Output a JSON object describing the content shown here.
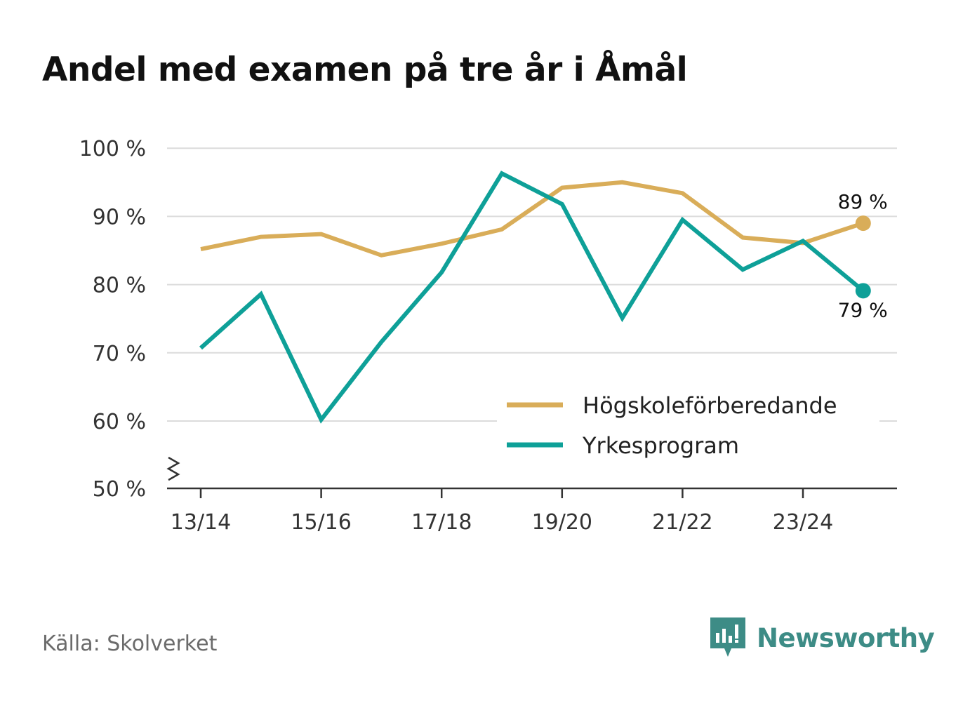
{
  "title": "Andel med examen på tre år i Åmål",
  "source": "Källa: Skolverket",
  "brand": {
    "name": "Newsworthy",
    "icon": "newsworthy-logo-icon",
    "color": "#3d8c86"
  },
  "chart_data": {
    "type": "line",
    "title": "Andel med examen på tre år i Åmål",
    "xlabel": "",
    "ylabel": "",
    "x": [
      "13/14",
      "14/15",
      "15/16",
      "16/17",
      "17/18",
      "18/19",
      "19/20",
      "20/21",
      "21/22",
      "22/23",
      "23/24",
      "24/25"
    ],
    "x_tick_labels": [
      "13/14",
      "15/16",
      "17/18",
      "19/20",
      "21/22",
      "23/24"
    ],
    "ylim": [
      50,
      100
    ],
    "y_ticks": [
      50,
      60,
      70,
      80,
      90,
      100
    ],
    "y_tick_labels": [
      "50 %",
      "60 %",
      "70 %",
      "80 %",
      "90 %",
      "100 %"
    ],
    "axis_break": true,
    "grid": true,
    "legend_position": "bottom-right",
    "series": [
      {
        "name": "Högskoleförberedande",
        "color": "#d9ad59",
        "values": [
          85.2,
          87.0,
          87.4,
          84.3,
          86.0,
          88.1,
          94.2,
          95.0,
          93.4,
          86.9,
          86.1,
          89.0
        ],
        "end_label": "89 %"
      },
      {
        "name": "Yrkesprogram",
        "color": "#0ea098",
        "values": [
          70.7,
          78.6,
          60.2,
          71.6,
          81.8,
          96.3,
          91.8,
          75.1,
          89.5,
          82.2,
          86.4,
          79.1
        ],
        "end_label": "79 %"
      }
    ]
  }
}
